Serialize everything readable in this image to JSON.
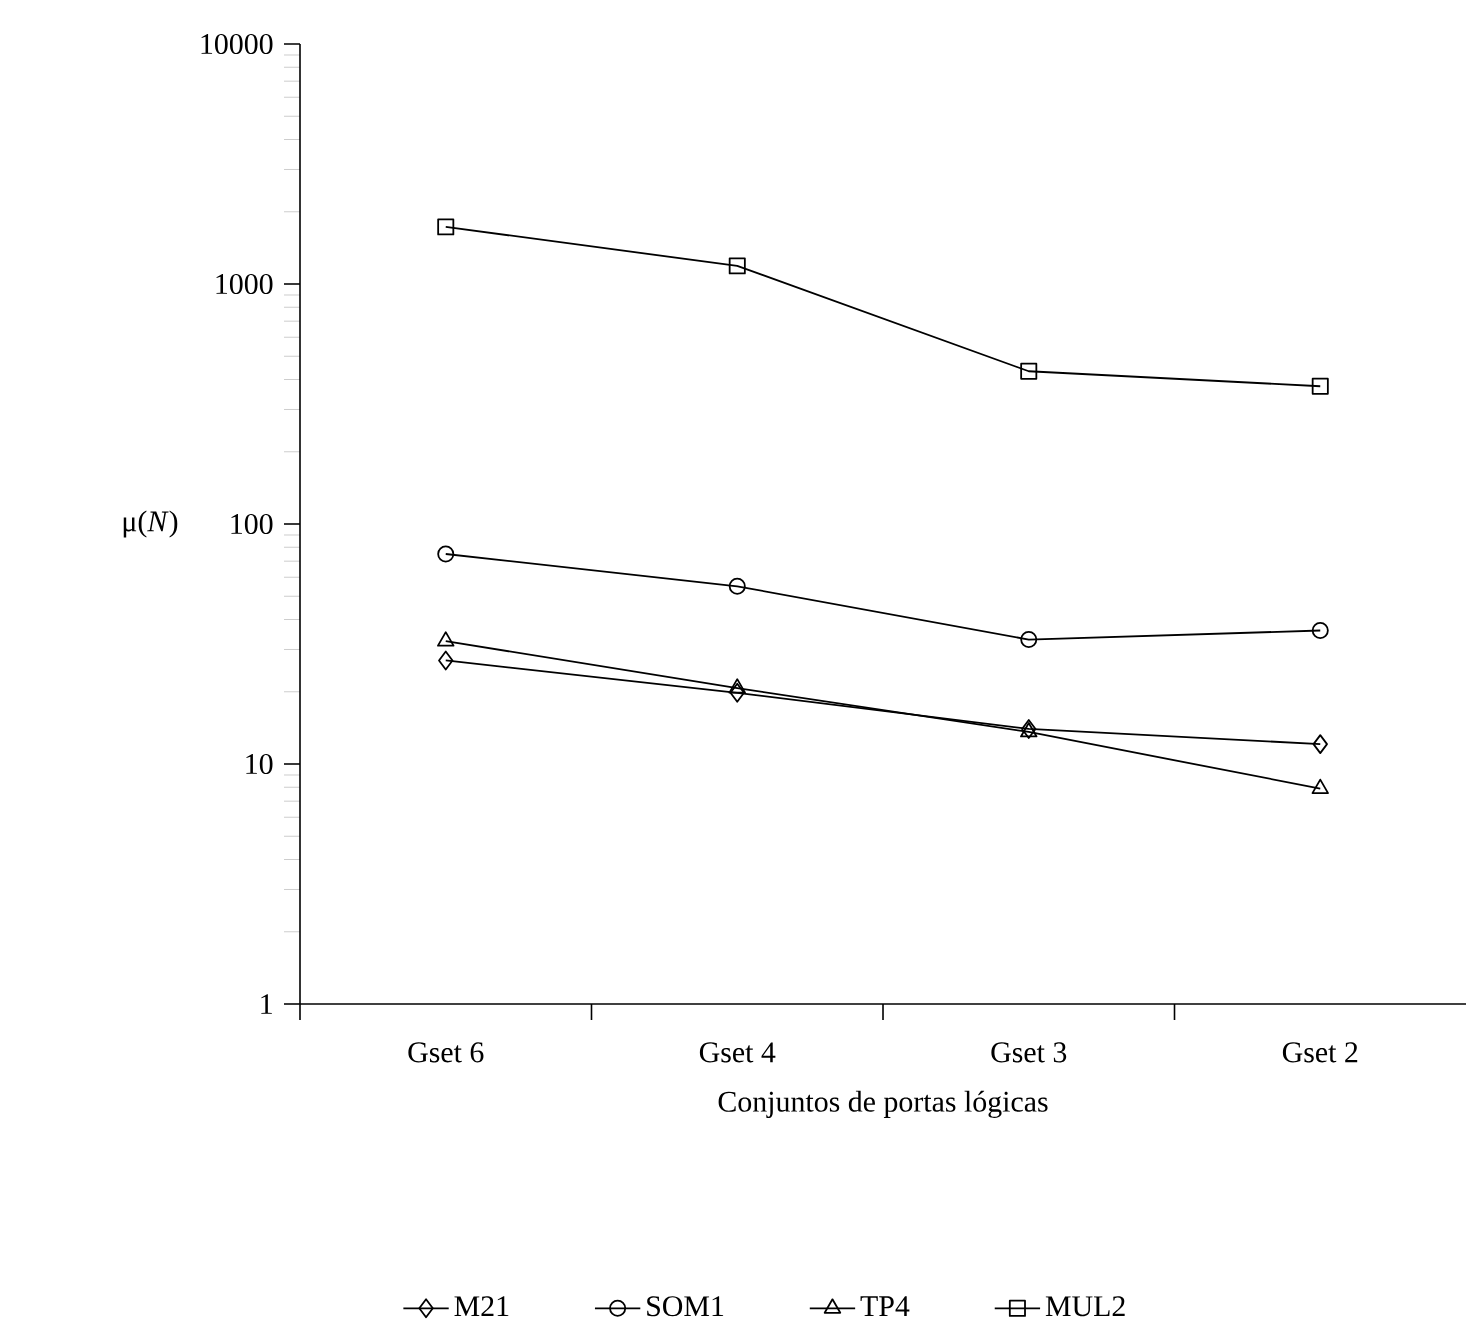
{
  "chart_data": {
    "type": "line",
    "xlabel": "Conjuntos de portas lógicas",
    "ylabel": "μ(*N*)",
    "categories": [
      "Gset 6",
      "Gset 4",
      "Gset 3",
      "Gset 2"
    ],
    "series": [
      {
        "name": "M21",
        "color": "#000000",
        "marker": "diamond",
        "values": [
          27,
          19.8,
          14,
          12.1
        ]
      },
      {
        "name": "SOM1",
        "color": "#000000",
        "marker": "circle",
        "values": [
          75,
          55,
          33,
          36
        ]
      },
      {
        "name": "TP4",
        "color": "#000000",
        "marker": "triangle",
        "values": [
          32.5,
          20.7,
          13.6,
          7.9
        ]
      },
      {
        "name": "MUL2",
        "color": "#000000",
        "marker": "square",
        "values": [
          1730,
          1190,
          433,
          375
        ]
      }
    ],
    "log": "y",
    "ylim": [
      1,
      10000
    ],
    "yticks": [
      1,
      10,
      100,
      1000,
      10000
    ],
    "legend": "bottom"
  }
}
